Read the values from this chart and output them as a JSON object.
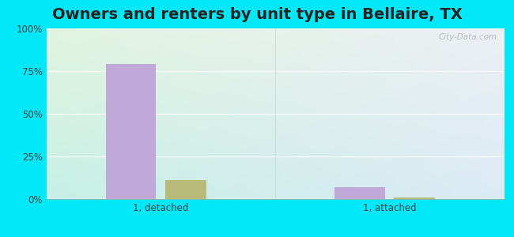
{
  "title": "Owners and renters by unit type in Bellaire, TX",
  "categories": [
    "1, detached",
    "1, attached"
  ],
  "owner_values": [
    79,
    7
  ],
  "renter_values": [
    11,
    1
  ],
  "owner_color": "#c0a8d8",
  "renter_color": "#b8ba7a",
  "owner_bar_width": 0.22,
  "renter_bar_width": 0.18,
  "ylim": [
    0,
    100
  ],
  "yticks": [
    0,
    25,
    50,
    75,
    100
  ],
  "yticklabels": [
    "0%",
    "25%",
    "50%",
    "75%",
    "100%"
  ],
  "background_outer": "#00e8f8",
  "title_fontsize": 14,
  "watermark": "City-Data.com",
  "bg_color_topleft": "#daeee0",
  "bg_color_topright": "#e8f8e8",
  "bg_color_bottomleft": "#c8ece8",
  "bg_color_bottomright": "#daf0e8"
}
